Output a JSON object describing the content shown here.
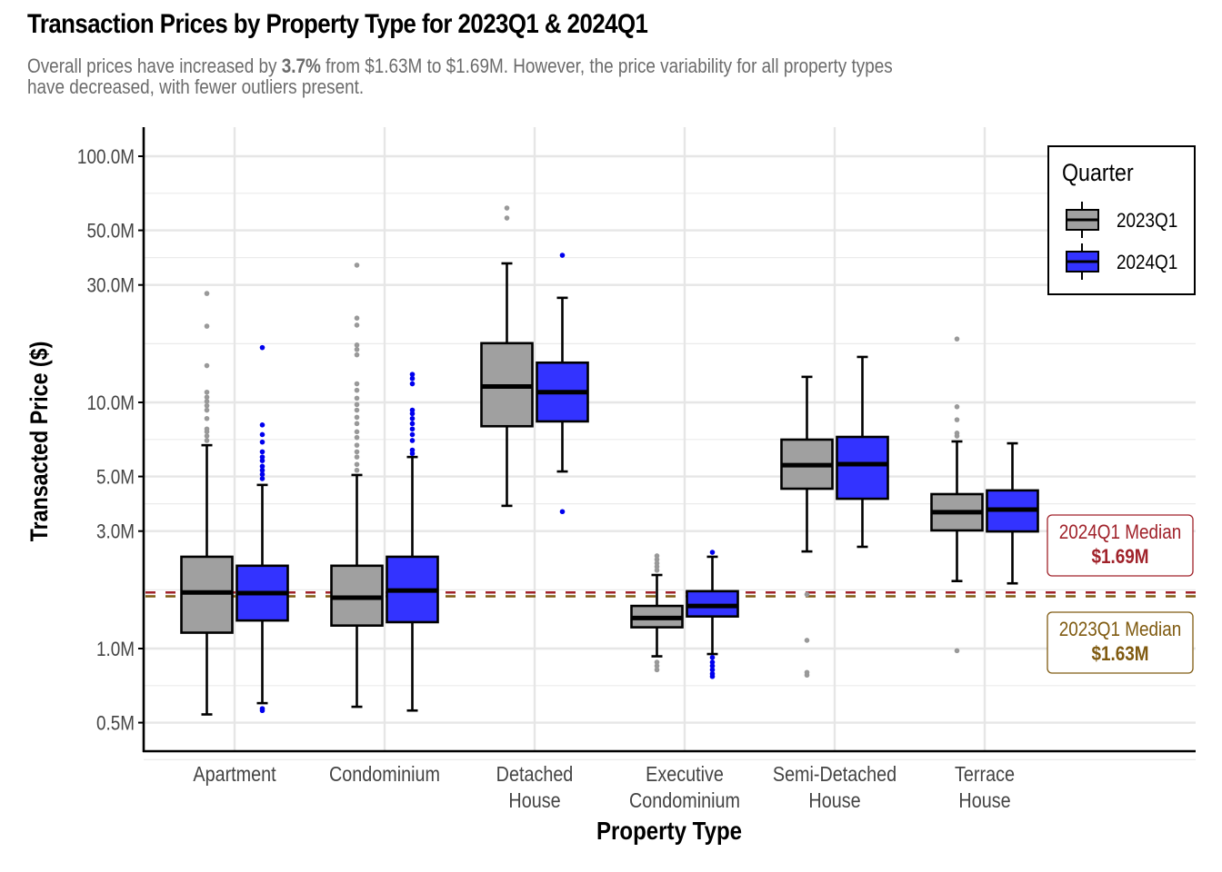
{
  "header": {
    "title": "Transaction Prices by Property Type for 2023Q1 & 2024Q1",
    "subtitle_pre": "Overall prices have increased by ",
    "subtitle_bold": "3.7%",
    "subtitle_post": " from $1.63M to $1.69M. However, the price variability for all property types",
    "subtitle_line2": "have decreased, with fewer outliers present."
  },
  "chart_data": {
    "type": "boxplot",
    "title": "Transaction Prices by Property Type for 2023Q1 & 2024Q1",
    "subtitle": "Overall prices have increased by 3.7% from $1.63M to $1.69M. However, the price variability for all property types have decreased, with fewer outliers present.",
    "xlabel": "Property Type",
    "ylabel": "Transacted Price ($)",
    "yscale": "log10",
    "ylim": [
      0.42,
      125
    ],
    "y_unit": "M",
    "yticks": [
      0.5,
      1,
      3,
      5,
      10,
      30,
      50,
      100
    ],
    "ytick_labels": [
      "0.5M",
      "1.0M",
      "3.0M",
      "5.0M",
      "10.0M",
      "30.0M",
      "50.0M",
      "100.0M"
    ],
    "grid": true,
    "categories": [
      [
        "Apartment"
      ],
      [
        "Condominium"
      ],
      [
        "Detached",
        "House"
      ],
      [
        "Executive",
        "Condominium"
      ],
      [
        "Semi-Detached",
        "House"
      ],
      [
        "Terrace",
        "House"
      ]
    ],
    "legend": {
      "title": "Quarter",
      "position": "top-right",
      "entries": [
        {
          "label": "2023Q1",
          "color": "#a0a0a0"
        },
        {
          "label": "2024Q1",
          "color": "#3333ff"
        }
      ]
    },
    "series": [
      {
        "name": "2023Q1",
        "fill": "#a0a0a0",
        "outlier_color": "#999999",
        "boxes": [
          {
            "lower_whisker": 0.54,
            "q1": 1.16,
            "median": 1.69,
            "q3": 2.36,
            "upper_whisker": 6.7,
            "outliers": [
              27.7,
              20.4,
              14.1,
              11.0,
              10.5,
              10.1,
              9.7,
              9.3,
              8.6,
              7.8,
              7.6,
              7.3,
              7.0
            ]
          },
          {
            "lower_whisker": 0.58,
            "q1": 1.24,
            "median": 1.61,
            "q3": 2.17,
            "upper_whisker": 5.07,
            "outliers": [
              36.1,
              22.0,
              20.6,
              17.1,
              16.4,
              15.6,
              11.9,
              11.2,
              10.4,
              9.8,
              9.3,
              8.7,
              8.2,
              7.6,
              7.2,
              6.7,
              6.3,
              6.0,
              5.6,
              5.3
            ]
          },
          {
            "lower_whisker": 3.8,
            "q1": 8.0,
            "median": 11.6,
            "q3": 17.4,
            "upper_whisker": 36.7,
            "outliers": [
              61.6,
              56.1
            ]
          },
          {
            "lower_whisker": 0.93,
            "q1": 1.22,
            "median": 1.33,
            "q3": 1.49,
            "upper_whisker": 1.99,
            "outliers": [
              2.38,
              2.3,
              2.22,
              2.15,
              2.08,
              0.88,
              0.85,
              0.82
            ]
          },
          {
            "lower_whisker": 2.48,
            "q1": 4.46,
            "median": 5.56,
            "q3": 7.06,
            "upper_whisker": 12.7,
            "outliers": [
              1.66,
              1.08,
              0.8,
              0.78
            ]
          },
          {
            "lower_whisker": 1.88,
            "q1": 3.02,
            "median": 3.58,
            "q3": 4.24,
            "upper_whisker": 6.94,
            "outliers": [
              18.1,
              9.6,
              8.5,
              7.5,
              7.3,
              0.98
            ]
          }
        ]
      },
      {
        "name": "2024Q1",
        "fill": "#3333ff",
        "outlier_color": "#0000ee",
        "boxes": [
          {
            "lower_whisker": 0.6,
            "q1": 1.3,
            "median": 1.68,
            "q3": 2.17,
            "upper_whisker": 4.62,
            "outliers": [
              16.7,
              8.1,
              7.4,
              6.9,
              6.3,
              6.0,
              5.8,
              5.5,
              5.3,
              5.1,
              4.9,
              0.57,
              0.56
            ]
          },
          {
            "lower_whisker": 0.56,
            "q1": 1.28,
            "median": 1.72,
            "q3": 2.36,
            "upper_whisker": 6.0,
            "outliers": [
              13.0,
              12.5,
              11.9,
              9.3,
              9.0,
              8.6,
              8.2,
              7.8,
              7.4,
              7.0,
              6.4,
              6.2
            ]
          },
          {
            "lower_whisker": 5.24,
            "q1": 8.37,
            "median": 11.0,
            "q3": 14.5,
            "upper_whisker": 26.6,
            "outliers": [
              39.6,
              3.6
            ]
          },
          {
            "lower_whisker": 0.95,
            "q1": 1.35,
            "median": 1.49,
            "q3": 1.71,
            "upper_whisker": 2.36,
            "outliers": [
              2.46,
              0.92,
              0.88,
              0.85,
              0.82,
              0.79,
              0.77
            ]
          },
          {
            "lower_whisker": 2.59,
            "q1": 4.06,
            "median": 5.61,
            "q3": 7.24,
            "upper_whisker": 15.3,
            "outliers": []
          },
          {
            "lower_whisker": 1.84,
            "q1": 2.99,
            "median": 3.67,
            "q3": 4.39,
            "upper_whisker": 6.82,
            "outliers": []
          }
        ]
      }
    ],
    "reference_lines": [
      {
        "name": "2024Q1 Median",
        "value": 1.69,
        "value_label": "$1.69M",
        "color": "#a0222a",
        "style": "dashed"
      },
      {
        "name": "2023Q1 Median",
        "value": 1.63,
        "value_label": "$1.63M",
        "color": "#7f5a10",
        "style": "dashed"
      }
    ],
    "annotations": [
      {
        "line1": "2024Q1 Median",
        "line2": "$1.69M",
        "color": "#a0222a"
      },
      {
        "line1": "2023Q1 Median",
        "line2": "$1.63M",
        "color": "#7f5a10"
      }
    ]
  }
}
